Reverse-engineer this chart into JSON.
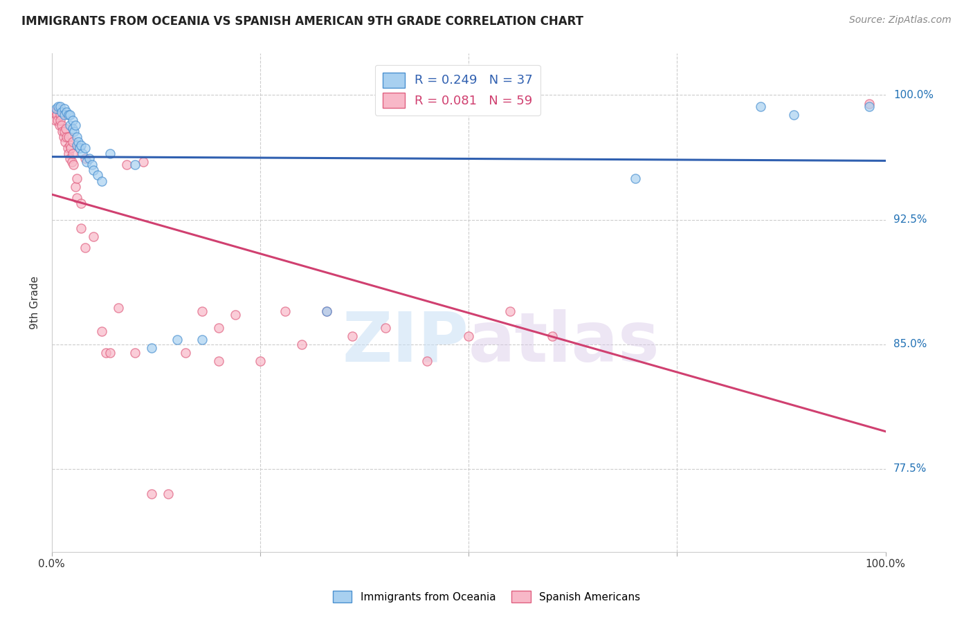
{
  "title": "IMMIGRANTS FROM OCEANIA VS SPANISH AMERICAN 9TH GRADE CORRELATION CHART",
  "source": "Source: ZipAtlas.com",
  "ylabel": "9th Grade",
  "xlim": [
    0.0,
    1.0
  ],
  "ylim": [
    0.725,
    1.025
  ],
  "watermark_zip": "ZIP",
  "watermark_atlas": "atlas",
  "legend_blue_r": "R = 0.249",
  "legend_blue_n": "N = 37",
  "legend_pink_r": "R = 0.081",
  "legend_pink_n": "N = 59",
  "blue_color": "#a8d0f0",
  "pink_color": "#f8b8c8",
  "blue_edge_color": "#4a90d0",
  "pink_edge_color": "#e06080",
  "blue_line_color": "#3060b0",
  "pink_line_color": "#d04070",
  "scatter_alpha": 0.7,
  "scatter_size": 90,
  "ytick_values": [
    0.775,
    0.85,
    0.925,
    1.0
  ],
  "ytick_labels": [
    "77.5%",
    "85.0%",
    "92.5%",
    "100.0%"
  ],
  "blue_scatter_x": [
    0.005,
    0.008,
    0.01,
    0.012,
    0.015,
    0.015,
    0.018,
    0.02,
    0.022,
    0.022,
    0.025,
    0.025,
    0.027,
    0.028,
    0.03,
    0.03,
    0.032,
    0.033,
    0.035,
    0.037,
    0.04,
    0.042,
    0.045,
    0.048,
    0.05,
    0.055,
    0.06,
    0.07,
    0.1,
    0.12,
    0.15,
    0.18,
    0.33,
    0.7,
    0.85,
    0.89,
    0.98
  ],
  "blue_scatter_y": [
    0.992,
    0.993,
    0.993,
    0.99,
    0.992,
    0.988,
    0.99,
    0.988,
    0.988,
    0.982,
    0.985,
    0.98,
    0.978,
    0.982,
    0.975,
    0.97,
    0.972,
    0.968,
    0.97,
    0.965,
    0.968,
    0.96,
    0.962,
    0.958,
    0.955,
    0.952,
    0.948,
    0.965,
    0.958,
    0.848,
    0.853,
    0.853,
    0.87,
    0.95,
    0.993,
    0.988,
    0.993
  ],
  "pink_scatter_x": [
    0.002,
    0.004,
    0.005,
    0.006,
    0.007,
    0.008,
    0.009,
    0.01,
    0.01,
    0.012,
    0.013,
    0.014,
    0.015,
    0.016,
    0.017,
    0.018,
    0.019,
    0.02,
    0.02,
    0.022,
    0.022,
    0.023,
    0.024,
    0.025,
    0.025,
    0.026,
    0.028,
    0.03,
    0.03,
    0.035,
    0.035,
    0.04,
    0.04,
    0.05,
    0.06,
    0.065,
    0.07,
    0.08,
    0.09,
    0.1,
    0.11,
    0.12,
    0.14,
    0.16,
    0.18,
    0.2,
    0.22,
    0.25,
    0.28,
    0.3,
    0.33,
    0.36,
    0.4,
    0.45,
    0.5,
    0.55,
    0.6,
    0.98,
    0.2
  ],
  "pink_scatter_y": [
    0.99,
    0.985,
    0.99,
    0.988,
    0.985,
    0.992,
    0.982,
    0.988,
    0.985,
    0.982,
    0.978,
    0.975,
    0.978,
    0.972,
    0.98,
    0.975,
    0.968,
    0.965,
    0.975,
    0.962,
    0.97,
    0.968,
    0.96,
    0.965,
    0.972,
    0.958,
    0.945,
    0.95,
    0.938,
    0.935,
    0.92,
    0.962,
    0.908,
    0.915,
    0.858,
    0.845,
    0.845,
    0.872,
    0.958,
    0.845,
    0.96,
    0.76,
    0.76,
    0.845,
    0.87,
    0.86,
    0.868,
    0.84,
    0.87,
    0.85,
    0.87,
    0.855,
    0.86,
    0.84,
    0.855,
    0.87,
    0.855,
    0.995,
    0.84
  ]
}
